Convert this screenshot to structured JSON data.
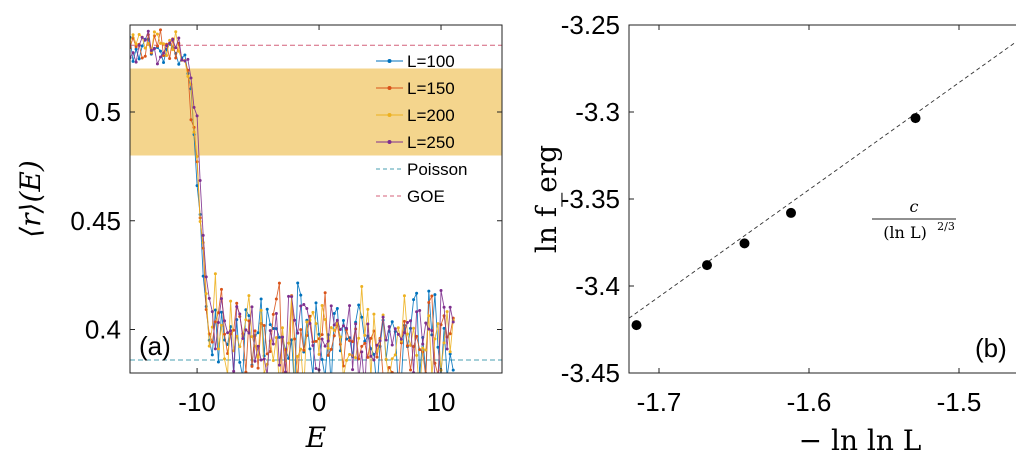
{
  "chart_data": [
    {
      "type": "line",
      "panel_label": "(a)",
      "xlabel": "E",
      "ylabel": "⟨r⟩(E)",
      "xlim": [
        -15.5,
        15
      ],
      "ylim": [
        0.38,
        0.54
      ],
      "xticks": [
        "-10",
        "0",
        "10"
      ],
      "xtick_values": [
        -10,
        0,
        10
      ],
      "yticks": [
        "0.4",
        "0.45",
        "0.5"
      ],
      "ytick_values": [
        0.4,
        0.45,
        0.5
      ],
      "shaded_band": {
        "y0": 0.48,
        "y1": 0.52,
        "color": "#f4d58d"
      },
      "reference_lines": [
        {
          "name": "Poisson",
          "y": 0.386,
          "color": "#4a9fb0"
        },
        {
          "name": "GOE",
          "y": 0.5307,
          "color": "#d4607a"
        }
      ],
      "legend_position": "top-right",
      "series": [
        {
          "name": "L=100",
          "color": "#0072bd",
          "seed": 11
        },
        {
          "name": "L=150",
          "color": "#d95319",
          "seed": 23
        },
        {
          "name": "L=200",
          "color": "#edb120",
          "seed": 37
        },
        {
          "name": "L=250",
          "color": "#7e2f8e",
          "seed": 51
        }
      ],
      "curve": {
        "x_start": -15.5,
        "x_end": 11,
        "step": 0.25,
        "plateau_high": 0.529,
        "plateau_low": 0.396,
        "transition_center": -10.0,
        "transition_width": 0.35,
        "noise_high": 0.006,
        "noise_low": 0.018
      }
    },
    {
      "type": "scatter",
      "panel_label": "(b)",
      "xlabel": "− ln ln L",
      "ylabel": "ln f_erg",
      "xlim": [
        -1.72,
        -1.46
      ],
      "ylim": [
        -3.45,
        -3.25
      ],
      "xticks": [
        "-1.7",
        "-1.6",
        "-1.5"
      ],
      "xtick_values": [
        -1.7,
        -1.6,
        -1.5
      ],
      "yticks": [
        "-3.45",
        "-3.4",
        "-3.35",
        "-3.3",
        "-3.25"
      ],
      "ytick_values": [
        -3.45,
        -3.4,
        -3.35,
        -3.3,
        -3.25
      ],
      "points": {
        "x": [
          -1.715,
          -1.668,
          -1.643,
          -1.612,
          -1.529
        ],
        "y": [
          -3.4225,
          -3.388,
          -3.3755,
          -3.358,
          -3.3035
        ]
      },
      "fit_line": {
        "x": [
          -1.72,
          -1.46
        ],
        "y": [
          -3.4185,
          -3.2585
        ]
      },
      "annotation": {
        "numerator": "c",
        "denominator": "(ln L)",
        "exponent": "2/3"
      }
    }
  ]
}
